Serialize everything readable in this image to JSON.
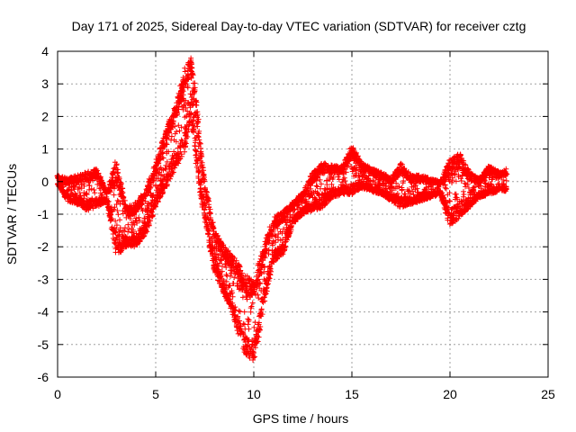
{
  "chart_data": {
    "type": "scatter",
    "title": "Day 171 of 2025, Sidereal Day-to-day VTEC variation (SDTVAR) for receiver cztg",
    "xlabel": "GPS time / hours",
    "ylabel": "SDTVAR / TECUs",
    "xlim": [
      0,
      25
    ],
    "ylim": [
      -6,
      4
    ],
    "xticks": [
      0,
      5,
      10,
      15,
      20,
      25
    ],
    "yticks": [
      -6,
      -5,
      -4,
      -3,
      -2,
      -1,
      0,
      1,
      2,
      3,
      4
    ],
    "xtick_labels": [
      "0",
      "5",
      "10",
      "15",
      "20",
      "25"
    ],
    "ytick_labels": [
      "-6",
      "-5",
      "-4",
      "-3",
      "-2",
      "-1",
      "0",
      "1",
      "2",
      "3",
      "4"
    ],
    "grid": true,
    "marker": "+",
    "marker_color": "#ff0000",
    "series": [
      {
        "name": "SDTVAR",
        "bands": [
          [
            0.0,
            0.2,
            -0.1
          ],
          [
            0.5,
            0.1,
            -0.6
          ],
          [
            1.0,
            0.2,
            -0.7
          ],
          [
            1.5,
            0.3,
            -0.9
          ],
          [
            2.0,
            0.4,
            -0.8
          ],
          [
            2.5,
            -0.3,
            -0.6
          ],
          [
            3.0,
            0.7,
            -2.3
          ],
          [
            3.5,
            -0.8,
            -2.0
          ],
          [
            4.0,
            -0.6,
            -2.0
          ],
          [
            4.5,
            -0.2,
            -1.6
          ],
          [
            5.0,
            0.6,
            -0.8
          ],
          [
            5.5,
            1.6,
            -0.2
          ],
          [
            6.0,
            2.3,
            0.4
          ],
          [
            6.5,
            3.5,
            0.9
          ],
          [
            6.8,
            3.8,
            2.0
          ],
          [
            7.0,
            3.0,
            0.8
          ],
          [
            7.3,
            1.0,
            -0.5
          ],
          [
            7.6,
            -0.3,
            -1.5
          ],
          [
            8.0,
            -1.5,
            -2.8
          ],
          [
            8.5,
            -2.0,
            -3.5
          ],
          [
            9.0,
            -2.3,
            -4.2
          ],
          [
            9.5,
            -2.8,
            -5.3
          ],
          [
            10.0,
            -3.0,
            -5.5
          ],
          [
            10.3,
            -2.4,
            -4.6
          ],
          [
            10.7,
            -1.6,
            -3.2
          ],
          [
            11.0,
            -1.1,
            -2.5
          ],
          [
            11.5,
            -0.9,
            -2.2
          ],
          [
            12.0,
            -0.6,
            -1.3
          ],
          [
            12.5,
            -0.3,
            -1.0
          ],
          [
            13.0,
            0.3,
            -0.9
          ],
          [
            13.5,
            0.6,
            -0.8
          ],
          [
            14.0,
            0.5,
            -0.5
          ],
          [
            14.5,
            0.5,
            -0.4
          ],
          [
            15.0,
            1.1,
            -0.4
          ],
          [
            15.5,
            0.6,
            -0.2
          ],
          [
            16.0,
            0.4,
            -0.3
          ],
          [
            16.5,
            0.3,
            -0.4
          ],
          [
            17.0,
            0.1,
            -0.6
          ],
          [
            17.5,
            0.6,
            -0.8
          ],
          [
            18.0,
            0.2,
            -0.7
          ],
          [
            18.5,
            0.2,
            -0.6
          ],
          [
            19.0,
            0.1,
            -0.5
          ],
          [
            19.5,
            0.0,
            -0.4
          ],
          [
            20.0,
            0.7,
            -1.4
          ],
          [
            20.5,
            0.9,
            -1.1
          ],
          [
            21.0,
            0.3,
            -0.8
          ],
          [
            21.5,
            0.1,
            -0.5
          ],
          [
            22.0,
            0.5,
            -0.4
          ],
          [
            22.5,
            0.3,
            -0.3
          ],
          [
            22.9,
            0.4,
            -0.3
          ]
        ]
      }
    ]
  }
}
